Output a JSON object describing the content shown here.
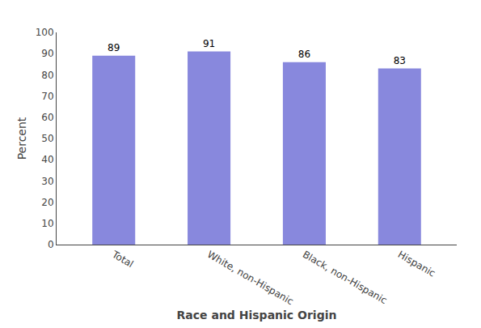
{
  "chart_data": {
    "type": "bar",
    "categories": [
      "Total",
      "White, non-Hispanic",
      "Black, non-Hispanic",
      "Hispanic"
    ],
    "values": [
      89,
      91,
      86,
      83
    ],
    "color": "#8888dd",
    "xlabel": "Race and Hispanic Origin",
    "ylabel": "Percent",
    "ylim": [
      0,
      100
    ],
    "yticks": [
      0,
      10,
      20,
      30,
      40,
      50,
      60,
      70,
      80,
      90,
      100
    ],
    "grid": false,
    "data_labels": true
  }
}
